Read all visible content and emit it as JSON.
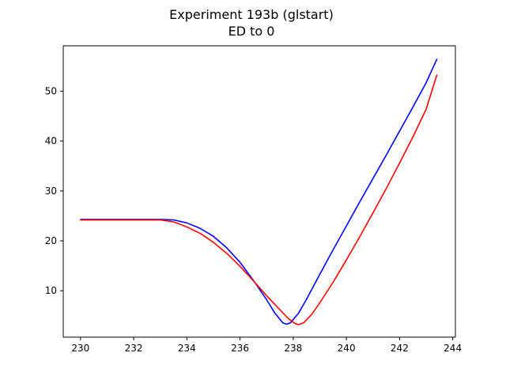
{
  "chart_data": {
    "type": "line",
    "title": "Experiment 193b (glstart)",
    "subtitle": "ED to 0",
    "xlabel": "",
    "ylabel": "",
    "xlim": [
      229.35,
      244.1
    ],
    "ylim": [
      0.7,
      59.1
    ],
    "grid": false,
    "x_ticks": [
      230,
      232,
      234,
      236,
      238,
      240,
      242,
      244
    ],
    "y_ticks": [
      10,
      20,
      30,
      40,
      50
    ],
    "series": [
      {
        "color": "#0000ff",
        "points": [
          [
            230,
            24.3
          ],
          [
            231,
            24.3
          ],
          [
            232,
            24.3
          ],
          [
            233,
            24.3
          ],
          [
            233.5,
            24.2
          ],
          [
            234,
            23.6
          ],
          [
            234.5,
            22.5
          ],
          [
            235,
            20.9
          ],
          [
            235.5,
            18.6
          ],
          [
            236,
            15.7
          ],
          [
            236.5,
            12.1
          ],
          [
            237,
            8.2
          ],
          [
            237.3,
            5.6
          ],
          [
            237.6,
            3.6
          ],
          [
            237.75,
            3.3
          ],
          [
            237.9,
            3.6
          ],
          [
            238.2,
            5.5
          ],
          [
            238.5,
            8.3
          ],
          [
            239,
            13.3
          ],
          [
            239.5,
            18.2
          ],
          [
            240,
            23.0
          ],
          [
            240.5,
            27.8
          ],
          [
            241,
            32.5
          ],
          [
            241.5,
            37.2
          ],
          [
            242,
            42.0
          ],
          [
            242.5,
            46.8
          ],
          [
            243,
            51.7
          ],
          [
            243.4,
            56.4
          ]
        ]
      },
      {
        "color": "#ff0000",
        "points": [
          [
            230,
            24.2
          ],
          [
            231,
            24.2
          ],
          [
            232,
            24.2
          ],
          [
            233,
            24.2
          ],
          [
            233.5,
            23.8
          ],
          [
            234,
            22.8
          ],
          [
            234.5,
            21.5
          ],
          [
            235,
            19.7
          ],
          [
            235.5,
            17.5
          ],
          [
            236,
            14.9
          ],
          [
            236.5,
            12.0
          ],
          [
            237,
            9.0
          ],
          [
            237.5,
            6.2
          ],
          [
            237.8,
            4.5
          ],
          [
            238.05,
            3.5
          ],
          [
            238.2,
            3.2
          ],
          [
            238.4,
            3.6
          ],
          [
            238.7,
            5.3
          ],
          [
            239,
            7.6
          ],
          [
            239.5,
            11.7
          ],
          [
            240,
            16.2
          ],
          [
            240.5,
            20.8
          ],
          [
            241,
            25.6
          ],
          [
            241.5,
            30.5
          ],
          [
            242,
            35.6
          ],
          [
            242.5,
            40.8
          ],
          [
            243,
            46.4
          ],
          [
            243.4,
            53.2
          ]
        ]
      }
    ]
  }
}
